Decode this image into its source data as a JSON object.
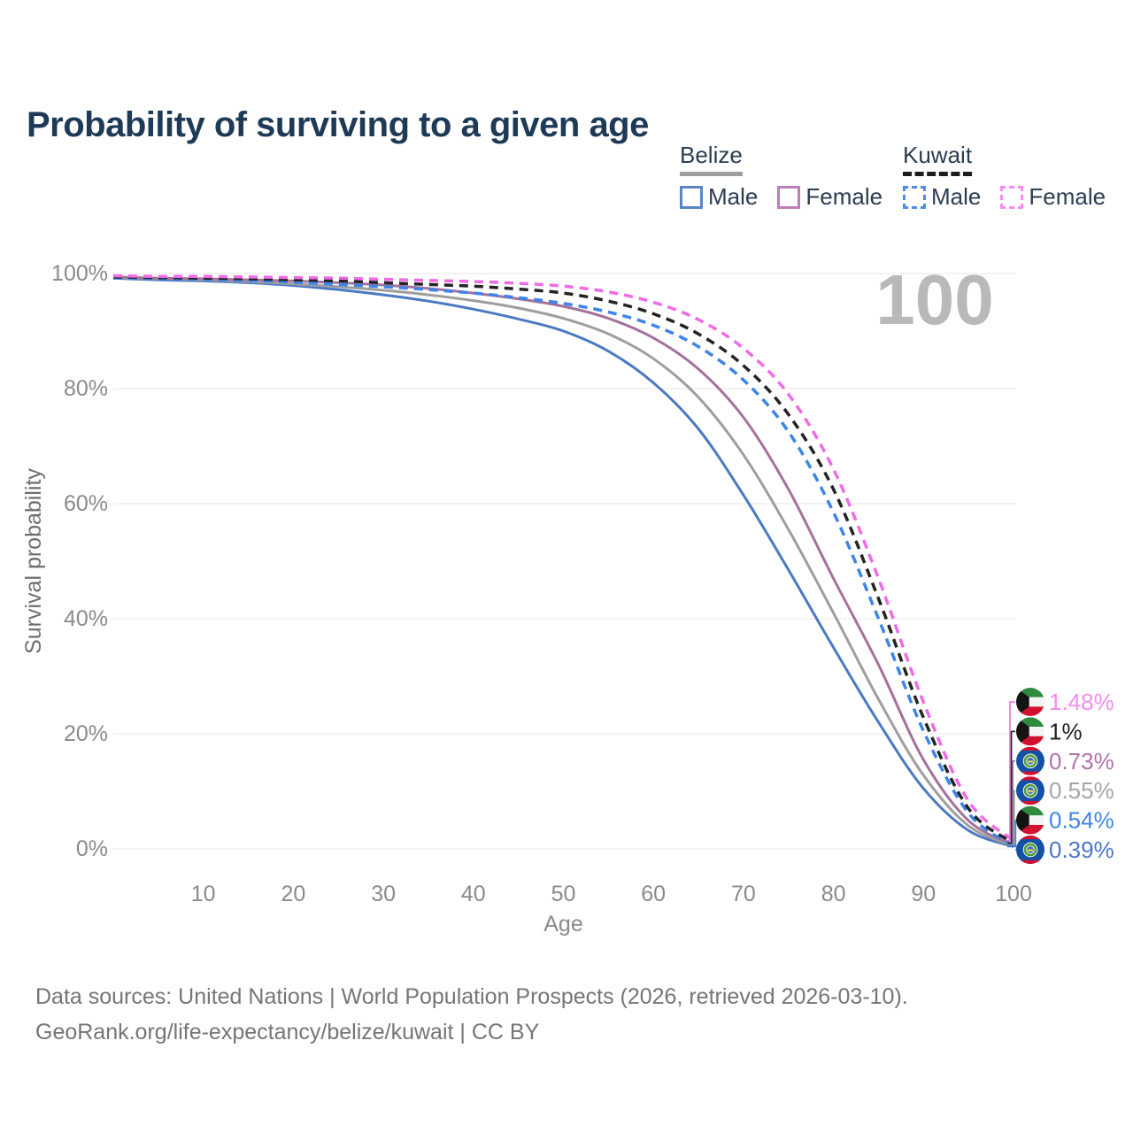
{
  "title": "Probability of surviving to a given age",
  "legend": {
    "groups": [
      {
        "country": "Belize",
        "line_style": "solid",
        "underline_color": "#9e9e9e",
        "items": [
          {
            "label": "Male",
            "color": "#4b79c2",
            "dashed": false
          },
          {
            "label": "Female",
            "color": "#a5719c",
            "dashed": false
          }
        ]
      },
      {
        "country": "Kuwait",
        "line_style": "dashed",
        "underline_color": "#1c1c1c",
        "items": [
          {
            "label": "Male",
            "color": "#3d85ea",
            "dashed": true
          },
          {
            "label": "Female",
            "color": "#f06ae8",
            "dashed": true
          }
        ]
      }
    ]
  },
  "age_indicator": "100",
  "chart_data": {
    "type": "line",
    "title": "Probability of surviving to a given age",
    "xlabel": "Age",
    "ylabel": "Survival probability",
    "xlim": [
      0,
      100
    ],
    "ylim": [
      0,
      100
    ],
    "grid": "horizontal",
    "x_ticks": [
      10,
      20,
      30,
      40,
      50,
      60,
      70,
      80,
      90,
      100
    ],
    "y_ticks": [
      {
        "value": 100,
        "label": "100%"
      },
      {
        "value": 80,
        "label": "80%"
      },
      {
        "value": 60,
        "label": "60%"
      },
      {
        "value": 40,
        "label": "40%"
      },
      {
        "value": 20,
        "label": "20%"
      },
      {
        "value": 0,
        "label": "0%"
      }
    ],
    "ages": [
      0,
      5,
      10,
      15,
      20,
      25,
      30,
      35,
      40,
      45,
      50,
      55,
      60,
      65,
      70,
      75,
      80,
      85,
      90,
      95,
      100
    ],
    "series": [
      {
        "name": "Belize Male",
        "country": "belize",
        "sex": "male",
        "color": "#4b79c2",
        "dashed": false,
        "values": [
          99.2,
          98.9,
          98.7,
          98.4,
          97.9,
          97.2,
          96.3,
          95.2,
          93.8,
          92.1,
          90.0,
          86.5,
          81.0,
          73.0,
          61.5,
          48.5,
          35.0,
          22.0,
          10.5,
          3.2,
          0.39
        ]
      },
      {
        "name": "Belize",
        "country": "belize",
        "sex": "both",
        "color": "#9e9e9e",
        "dashed": false,
        "values": [
          99.3,
          99.1,
          98.9,
          98.6,
          98.2,
          97.7,
          97.1,
          96.3,
          95.3,
          94.0,
          92.2,
          89.5,
          85.2,
          78.5,
          68.5,
          55.5,
          41.0,
          26.0,
          12.8,
          4.0,
          0.55
        ]
      },
      {
        "name": "Belize Female",
        "country": "belize",
        "sex": "female",
        "color": "#a5719c",
        "dashed": false,
        "values": [
          99.4,
          99.2,
          99.1,
          98.9,
          98.7,
          98.4,
          98.0,
          97.4,
          96.6,
          95.6,
          94.3,
          92.2,
          88.8,
          83.4,
          75.0,
          62.5,
          47.0,
          32.0,
          15.5,
          4.9,
          0.73
        ]
      },
      {
        "name": "Kuwait Male",
        "country": "kuwait",
        "sex": "male",
        "color": "#3d85ea",
        "dashed": true,
        "values": [
          99.3,
          99.1,
          99.0,
          98.8,
          98.5,
          98.1,
          97.7,
          97.2,
          96.6,
          95.8,
          94.8,
          93.3,
          91.0,
          87.3,
          81.5,
          72.5,
          58.5,
          40.0,
          20.5,
          6.2,
          0.54
        ]
      },
      {
        "name": "Kuwait",
        "country": "kuwait",
        "sex": "both",
        "color": "#232323",
        "dashed": true,
        "values": [
          99.4,
          99.3,
          99.2,
          99.1,
          98.9,
          98.7,
          98.4,
          98.1,
          97.8,
          97.3,
          96.6,
          95.2,
          93.0,
          89.5,
          84.0,
          75.5,
          62.5,
          43.5,
          22.8,
          7.0,
          1.0
        ]
      },
      {
        "name": "Kuwait Female",
        "country": "kuwait",
        "sex": "female",
        "color": "#f06ae8",
        "dashed": true,
        "values": [
          99.6,
          99.5,
          99.5,
          99.4,
          99.3,
          99.2,
          99.0,
          98.8,
          98.6,
          98.3,
          97.8,
          96.8,
          95.0,
          92.0,
          87.0,
          79.0,
          66.0,
          47.0,
          25.5,
          8.3,
          1.48
        ]
      }
    ],
    "end_labels": [
      {
        "flag": "kuwait",
        "text": "1.48%",
        "color": "#f78bf0",
        "line_color": "#f06ae8",
        "value": 1.48
      },
      {
        "flag": "kuwait",
        "text": "1%",
        "color": "#212121",
        "line_color": "#232323",
        "value": 1.0
      },
      {
        "flag": "belize",
        "text": "0.73%",
        "color": "#b272ae",
        "line_color": "#a5719c",
        "value": 0.73
      },
      {
        "flag": "belize",
        "text": "0.55%",
        "color": "#a6a6a6",
        "line_color": "#9e9e9e",
        "value": 0.55
      },
      {
        "flag": "kuwait",
        "text": "0.54%",
        "color": "#3d85ea",
        "line_color": "#3d85ea",
        "value": 0.54
      },
      {
        "flag": "belize",
        "text": "0.39%",
        "color": "#4a77c9",
        "line_color": "#4b79c2",
        "value": 0.39
      }
    ]
  },
  "footer": {
    "line1": "Data sources: United Nations | World Population Prospects (2026, retrieved 2026-03-10).",
    "line2": "GeoRank.org/life-expectancy/belize/kuwait | CC BY"
  }
}
